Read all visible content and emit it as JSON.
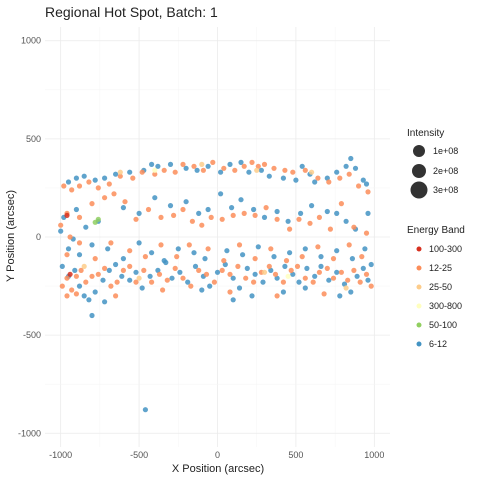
{
  "chart_data": {
    "type": "scatter",
    "title": "Regional Hot Spot, Batch: 1",
    "xlabel": "X Position (arcsec)",
    "ylabel": "Y Position (arcsec)",
    "xlim": [
      -1100,
      1100
    ],
    "ylim": [
      -1070,
      1070
    ],
    "x_ticks": [
      -1000,
      -500,
      0,
      500,
      1000
    ],
    "y_ticks": [
      -1000,
      -500,
      0,
      500,
      1000
    ],
    "grid": true,
    "size_legend": {
      "title": "Intensity",
      "entries": [
        {
          "label": "1e+08",
          "value": 100000000
        },
        {
          "label": "2e+08",
          "value": 200000000
        },
        {
          "label": "3e+08",
          "value": 300000000
        }
      ]
    },
    "color_legend": {
      "title": "Energy Band",
      "entries": [
        {
          "label": "100-300",
          "color": "#d7301f"
        },
        {
          "label": "12-25",
          "color": "#fc8d59"
        },
        {
          "label": "25-50",
          "color": "#fdcc8a"
        },
        {
          "label": "300-800",
          "color": "#ffffbf"
        },
        {
          "label": "50-100",
          "color": "#91cf60"
        },
        {
          "label": "6-12",
          "color": "#4393c3"
        }
      ]
    },
    "series": [
      {
        "band": "6-12",
        "color": "#4393c3",
        "points": [
          [
            -950,
            280
          ],
          [
            -900,
            300
          ],
          [
            -850,
            310
          ],
          [
            -780,
            290
          ],
          [
            -720,
            300
          ],
          [
            -650,
            320
          ],
          [
            -560,
            330
          ],
          [
            -470,
            340
          ],
          [
            -420,
            370
          ],
          [
            -380,
            360
          ],
          [
            -300,
            370
          ],
          [
            -200,
            350
          ],
          [
            -130,
            340
          ],
          [
            -60,
            360
          ],
          [
            20,
            330
          ],
          [
            80,
            370
          ],
          [
            150,
            380
          ],
          [
            200,
            330
          ],
          [
            280,
            340
          ],
          [
            330,
            310
          ],
          [
            420,
            300
          ],
          [
            500,
            290
          ],
          [
            540,
            360
          ],
          [
            590,
            320
          ],
          [
            620,
            280
          ],
          [
            700,
            300
          ],
          [
            760,
            330
          ],
          [
            820,
            360
          ],
          [
            850,
            400
          ],
          [
            880,
            350
          ],
          [
            930,
            290
          ],
          [
            950,
            270
          ],
          [
            -980,
            100
          ],
          [
            -900,
            140
          ],
          [
            -760,
            80
          ],
          [
            -600,
            150
          ],
          [
            -500,
            120
          ],
          [
            -400,
            200
          ],
          [
            -300,
            160
          ],
          [
            -200,
            180
          ],
          [
            -120,
            120
          ],
          [
            -60,
            140
          ],
          [
            20,
            220
          ],
          [
            90,
            150
          ],
          [
            150,
            190
          ],
          [
            230,
            140
          ],
          [
            300,
            100
          ],
          [
            380,
            130
          ],
          [
            450,
            80
          ],
          [
            530,
            120
          ],
          [
            600,
            160
          ],
          [
            700,
            130
          ],
          [
            760,
            120
          ],
          [
            820,
            80
          ],
          [
            880,
            40
          ],
          [
            960,
            120
          ],
          [
            -1000,
            30
          ],
          [
            -920,
            -10
          ],
          [
            -840,
            50
          ],
          [
            -990,
            -150
          ],
          [
            -950,
            -200
          ],
          [
            -910,
            -170
          ],
          [
            -880,
            -250
          ],
          [
            -850,
            -300
          ],
          [
            -820,
            -320
          ],
          [
            -780,
            -280
          ],
          [
            -730,
            -220
          ],
          [
            -690,
            -170
          ],
          [
            -650,
            -140
          ],
          [
            -610,
            -200
          ],
          [
            -560,
            -220
          ],
          [
            -520,
            -180
          ],
          [
            -480,
            -260
          ],
          [
            -430,
            -200
          ],
          [
            -380,
            -170
          ],
          [
            -330,
            -130
          ],
          [
            -290,
            -210
          ],
          [
            -240,
            -180
          ],
          [
            -190,
            -230
          ],
          [
            -140,
            -150
          ],
          [
            -90,
            -200
          ],
          [
            -50,
            -250
          ],
          [
            0,
            -180
          ],
          [
            50,
            -140
          ],
          [
            100,
            -210
          ],
          [
            140,
            -260
          ],
          [
            190,
            -160
          ],
          [
            240,
            -190
          ],
          [
            290,
            -230
          ],
          [
            340,
            -170
          ],
          [
            380,
            -210
          ],
          [
            430,
            -150
          ],
          [
            480,
            -190
          ],
          [
            520,
            -230
          ],
          [
            570,
            -160
          ],
          [
            620,
            -200
          ],
          [
            660,
            -150
          ],
          [
            710,
            -220
          ],
          [
            760,
            -180
          ],
          [
            810,
            -240
          ],
          [
            850,
            -280
          ],
          [
            890,
            -200
          ],
          [
            930,
            -160
          ],
          [
            960,
            -220
          ],
          [
            980,
            -140
          ],
          [
            -950,
            -60
          ],
          [
            -880,
            -90
          ],
          [
            -800,
            -40
          ],
          [
            -700,
            -60
          ],
          [
            -600,
            -110
          ],
          [
            -500,
            -30
          ],
          [
            -420,
            -80
          ],
          [
            -340,
            -120
          ],
          [
            -250,
            -60
          ],
          [
            -150,
            -80
          ],
          [
            -80,
            -110
          ],
          [
            60,
            -70
          ],
          [
            160,
            -90
          ],
          [
            260,
            -50
          ],
          [
            360,
            -100
          ],
          [
            460,
            -80
          ],
          [
            560,
            -60
          ],
          [
            660,
            -100
          ],
          [
            760,
            -70
          ],
          [
            860,
            -110
          ],
          [
            940,
            -60
          ],
          [
            -800,
            -400
          ],
          [
            -720,
            -330
          ],
          [
            -460,
            -880
          ],
          [
            -100,
            -270
          ],
          [
            100,
            -320
          ],
          [
            220,
            -300
          ],
          [
            420,
            -280
          ],
          [
            560,
            -260
          ],
          [
            780,
            -300
          ]
        ]
      },
      {
        "band": "12-25",
        "color": "#fc8d59",
        "points": [
          [
            -980,
            260
          ],
          [
            -930,
            240
          ],
          [
            -880,
            260
          ],
          [
            -820,
            280
          ],
          [
            -760,
            250
          ],
          [
            -690,
            270
          ],
          [
            -620,
            310
          ],
          [
            -540,
            300
          ],
          [
            -480,
            330
          ],
          [
            -400,
            320
          ],
          [
            -340,
            340
          ],
          [
            -270,
            330
          ],
          [
            -220,
            370
          ],
          [
            -150,
            360
          ],
          [
            -90,
            340
          ],
          [
            -30,
            380
          ],
          [
            40,
            350
          ],
          [
            110,
            340
          ],
          [
            170,
            360
          ],
          [
            220,
            380
          ],
          [
            260,
            360
          ],
          [
            300,
            370
          ],
          [
            360,
            350
          ],
          [
            430,
            340
          ],
          [
            480,
            330
          ],
          [
            560,
            340
          ],
          [
            640,
            300
          ],
          [
            710,
            280
          ],
          [
            780,
            300
          ],
          [
            840,
            320
          ],
          [
            900,
            260
          ],
          [
            960,
            230
          ],
          [
            -960,
            120
          ],
          [
            -880,
            100
          ],
          [
            -800,
            170
          ],
          [
            -720,
            200
          ],
          [
            -660,
            220
          ],
          [
            -590,
            180
          ],
          [
            -520,
            90
          ],
          [
            -440,
            140
          ],
          [
            -360,
            100
          ],
          [
            -280,
            110
          ],
          [
            -220,
            140
          ],
          [
            -160,
            80
          ],
          [
            -100,
            60
          ],
          [
            -40,
            100
          ],
          [
            30,
            90
          ],
          [
            100,
            110
          ],
          [
            170,
            120
          ],
          [
            240,
            110
          ],
          [
            310,
            150
          ],
          [
            380,
            90
          ],
          [
            460,
            40
          ],
          [
            520,
            90
          ],
          [
            590,
            70
          ],
          [
            650,
            100
          ],
          [
            720,
            40
          ],
          [
            790,
            170
          ],
          [
            870,
            50
          ],
          [
            950,
            20
          ],
          [
            -1000,
            60
          ],
          [
            -940,
            0
          ],
          [
            -990,
            -250
          ],
          [
            -960,
            -210
          ],
          [
            -930,
            -270
          ],
          [
            -900,
            -200
          ],
          [
            -870,
            -170
          ],
          [
            -840,
            -230
          ],
          [
            -800,
            -200
          ],
          [
            -760,
            -190
          ],
          [
            -720,
            -160
          ],
          [
            -680,
            -250
          ],
          [
            -640,
            -230
          ],
          [
            -600,
            -170
          ],
          [
            -560,
            -150
          ],
          [
            -520,
            -230
          ],
          [
            -470,
            -170
          ],
          [
            -420,
            -230
          ],
          [
            -370,
            -190
          ],
          [
            -320,
            -220
          ],
          [
            -270,
            -160
          ],
          [
            -220,
            -210
          ],
          [
            -170,
            -250
          ],
          [
            -120,
            -170
          ],
          [
            -70,
            -190
          ],
          [
            -20,
            -230
          ],
          [
            30,
            -170
          ],
          [
            80,
            -190
          ],
          [
            130,
            -150
          ],
          [
            180,
            -210
          ],
          [
            230,
            -230
          ],
          [
            280,
            -180
          ],
          [
            330,
            -150
          ],
          [
            370,
            -190
          ],
          [
            420,
            -230
          ],
          [
            470,
            -170
          ],
          [
            510,
            -150
          ],
          [
            560,
            -210
          ],
          [
            610,
            -230
          ],
          [
            650,
            -180
          ],
          [
            700,
            -160
          ],
          [
            740,
            -210
          ],
          [
            790,
            -180
          ],
          [
            830,
            -220
          ],
          [
            870,
            -170
          ],
          [
            910,
            -230
          ],
          [
            950,
            -190
          ],
          [
            980,
            -250
          ],
          [
            -960,
            -90
          ],
          [
            -880,
            -30
          ],
          [
            -780,
            -110
          ],
          [
            -680,
            -30
          ],
          [
            -560,
            -70
          ],
          [
            -460,
            -100
          ],
          [
            -360,
            -40
          ],
          [
            -260,
            -100
          ],
          [
            -180,
            -40
          ],
          [
            -60,
            -60
          ],
          [
            40,
            -120
          ],
          [
            140,
            -40
          ],
          [
            240,
            -110
          ],
          [
            340,
            -60
          ],
          [
            440,
            -120
          ],
          [
            540,
            -100
          ],
          [
            640,
            -50
          ],
          [
            740,
            -110
          ],
          [
            840,
            -40
          ],
          [
            920,
            -100
          ],
          [
            -960,
            -300
          ],
          [
            -900,
            -290
          ],
          [
            -650,
            -300
          ],
          [
            -350,
            -270
          ],
          [
            80,
            -280
          ],
          [
            380,
            -300
          ],
          [
            680,
            -290
          ]
        ]
      },
      {
        "band": "25-50",
        "color": "#fdcc8a",
        "points": [
          [
            -620,
            330
          ],
          [
            -100,
            370
          ],
          [
            250,
            340
          ],
          [
            600,
            330
          ],
          [
            -500,
            -210
          ],
          [
            300,
            -180
          ],
          [
            820,
            -260
          ],
          [
            -850,
            -150
          ]
        ]
      },
      {
        "band": "300-800",
        "color": "#ffffbf",
        "points": [
          [
            -400,
            340
          ],
          [
            450,
            -200
          ]
        ]
      },
      {
        "band": "50-100",
        "color": "#91cf60",
        "points": [
          [
            -760,
            90
          ],
          [
            -780,
            75
          ]
        ]
      },
      {
        "band": "100-300",
        "color": "#d7301f",
        "points": [
          [
            -960,
            110
          ],
          [
            -940,
            -190
          ]
        ]
      }
    ]
  }
}
